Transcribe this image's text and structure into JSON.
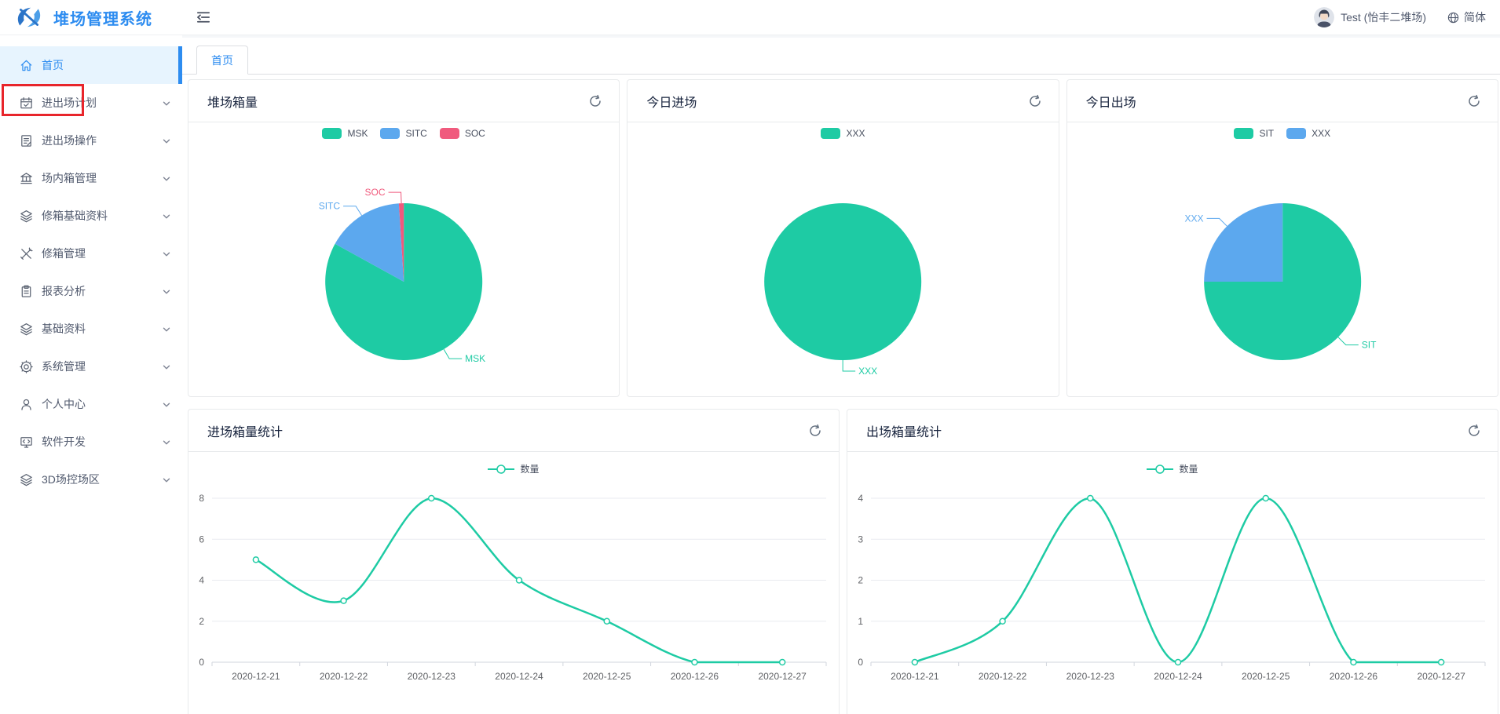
{
  "header": {
    "app_title": "堆场管理系统",
    "user_name": "Test (怡丰二堆场)",
    "language": "简体"
  },
  "sidebar": {
    "items": [
      {
        "label": "首页",
        "icon": "home",
        "active": true,
        "has_submenu": false,
        "annotated": true
      },
      {
        "label": "进出场计划",
        "icon": "calendar",
        "active": false,
        "has_submenu": true
      },
      {
        "label": "进出场操作",
        "icon": "document",
        "active": false,
        "has_submenu": true
      },
      {
        "label": "场内箱管理",
        "icon": "bank",
        "active": false,
        "has_submenu": true
      },
      {
        "label": "修箱基础资料",
        "icon": "layers",
        "active": false,
        "has_submenu": true
      },
      {
        "label": "修箱管理",
        "icon": "tools",
        "active": false,
        "has_submenu": true
      },
      {
        "label": "报表分析",
        "icon": "clipboard",
        "active": false,
        "has_submenu": true
      },
      {
        "label": "基础资料",
        "icon": "layers",
        "active": false,
        "has_submenu": true
      },
      {
        "label": "系统管理",
        "icon": "gear",
        "active": false,
        "has_submenu": true
      },
      {
        "label": "个人中心",
        "icon": "person",
        "active": false,
        "has_submenu": true
      },
      {
        "label": "软件开发",
        "icon": "monitor",
        "active": false,
        "has_submenu": true
      },
      {
        "label": "3D场控场区",
        "icon": "cube",
        "active": false,
        "has_submenu": true
      }
    ]
  },
  "tab_bar": {
    "active_tab": "首页"
  },
  "colors": {
    "accent_blue": "#2d8cf0",
    "teal": "#1ecba4",
    "blue": "#5ca8ee",
    "pink": "#f05a7d",
    "annotation_red": "#e8252b",
    "gridline": "#e9ebf0",
    "axis_line": "#d2d6de",
    "axis_text": "#606266"
  },
  "chart_data": [
    {
      "type": "pie",
      "title": "堆场箱量",
      "legend": [
        "MSK",
        "SITC",
        "SOC"
      ],
      "slices": [
        {
          "name": "MSK",
          "percent": 83,
          "color": "#1ecba4"
        },
        {
          "name": "SITC",
          "percent": 16,
          "color": "#5ca8ee"
        },
        {
          "name": "SOC",
          "percent": 1,
          "color": "#f05a7d"
        }
      ]
    },
    {
      "type": "pie",
      "title": "今日进场",
      "legend": [
        "XXX"
      ],
      "slices": [
        {
          "name": "XXX",
          "percent": 100,
          "color": "#1ecba4"
        }
      ]
    },
    {
      "type": "pie",
      "title": "今日出场",
      "legend": [
        "SIT",
        "XXX"
      ],
      "slices": [
        {
          "name": "SIT",
          "percent": 75,
          "color": "#1ecba4"
        },
        {
          "name": "XXX",
          "percent": 25,
          "color": "#5ca8ee"
        }
      ]
    },
    {
      "type": "line",
      "title": "进场箱量统计",
      "series_name": "数量",
      "categories": [
        "2020-12-21",
        "2020-12-22",
        "2020-12-23",
        "2020-12-24",
        "2020-12-25",
        "2020-12-26",
        "2020-12-27"
      ],
      "values": [
        5,
        3,
        8,
        4,
        2,
        0,
        0
      ],
      "ylim": [
        0,
        8
      ],
      "yticks": [
        0,
        2,
        4,
        6,
        8
      ],
      "color": "#1ecba4",
      "smooth": true,
      "legend_position": "top-center",
      "grid": true
    },
    {
      "type": "line",
      "title": "出场箱量统计",
      "series_name": "数量",
      "categories": [
        "2020-12-21",
        "2020-12-22",
        "2020-12-23",
        "2020-12-24",
        "2020-12-25",
        "2020-12-26",
        "2020-12-27"
      ],
      "values": [
        0,
        1,
        4,
        0,
        4,
        0,
        0
      ],
      "ylim": [
        0,
        4
      ],
      "yticks": [
        0,
        1,
        2,
        3,
        4
      ],
      "color": "#1ecba4",
      "smooth": true,
      "legend_position": "top-center",
      "grid": true
    }
  ]
}
